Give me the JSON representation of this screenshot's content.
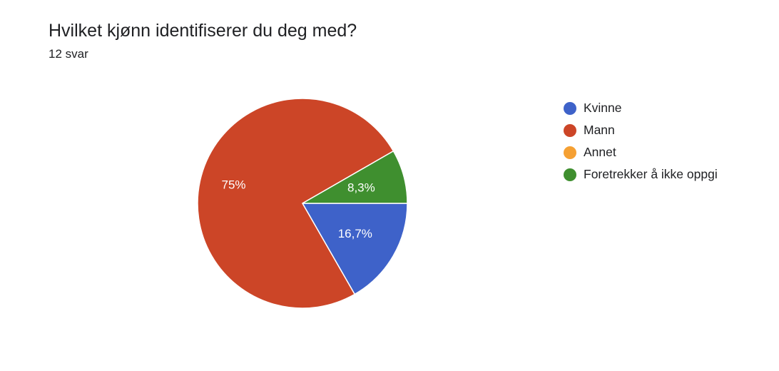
{
  "header": {
    "title": "Hvilket kjønn identifiserer du deg med?",
    "responses": "12 svar"
  },
  "chart_data": {
    "type": "pie",
    "categories": [
      "Kvinne",
      "Mann",
      "Annet",
      "Foretrekker å ikke oppgi"
    ],
    "values": [
      16.7,
      75,
      0,
      8.3
    ],
    "value_labels": [
      "16,7%",
      "75%",
      "",
      "8,3%"
    ],
    "colors": [
      "#3e62c9",
      "#cc4527",
      "#f5a033",
      "#3f8f2f"
    ],
    "legend_position": "right"
  }
}
